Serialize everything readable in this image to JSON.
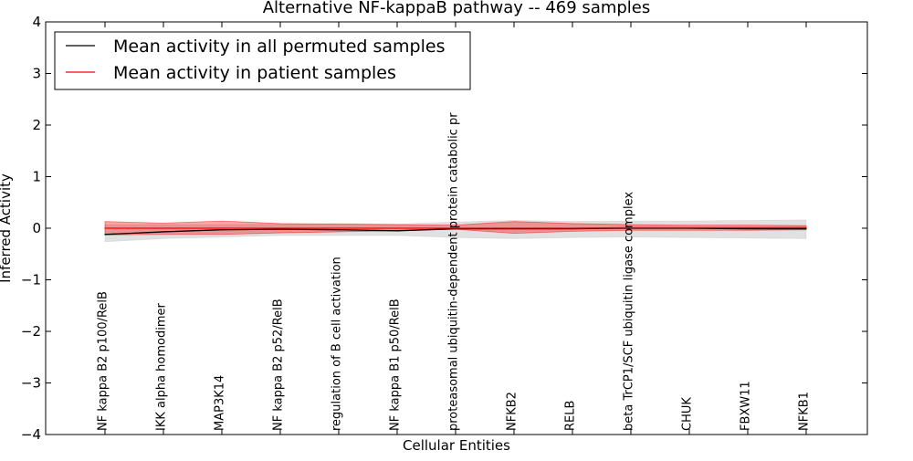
{
  "chart_data": {
    "type": "line",
    "title": "Alternative NF-kappaB pathway -- 469 samples",
    "xlabel": "Cellular Entities",
    "ylabel": "Inferred Activity",
    "ylim": [
      -4,
      4
    ],
    "yticks": [
      4,
      3,
      2,
      1,
      0,
      -1,
      -2,
      -3,
      -4
    ],
    "ytick_labels": [
      "4",
      "3",
      "2",
      "1",
      "0",
      "−1",
      "−2",
      "−3",
      "−4"
    ],
    "categories": [
      "NF kappa B2 p100/RelB",
      "IKK alpha homodimer",
      "MAP3K14",
      "NF kappa B2 p52/RelB",
      "regulation of B cell activation",
      "NF kappa B1 p50/RelB",
      "proteasomal ubiquitin-dependent protein catabolic pr",
      "NFKB2",
      "RELB",
      "beta TrCP1/SCF ubiquitin ligase complex",
      "CHUK",
      "FBXW11",
      "NFKB1"
    ],
    "series": [
      {
        "name": "Mean activity in all permuted samples",
        "color": "#000000",
        "band_color": "#c8c8c8",
        "values": [
          -0.12,
          -0.07,
          -0.03,
          -0.02,
          -0.03,
          -0.05,
          -0.01,
          -0.01,
          -0.01,
          0.0,
          0.0,
          -0.01,
          -0.01
        ],
        "lower": [
          -0.26,
          -0.2,
          -0.17,
          -0.14,
          -0.14,
          -0.14,
          -0.18,
          -0.2,
          -0.18,
          -0.17,
          -0.18,
          -0.19,
          -0.2
        ],
        "upper": [
          0.07,
          0.07,
          0.07,
          0.08,
          0.09,
          0.08,
          0.12,
          0.15,
          0.13,
          0.14,
          0.14,
          0.15,
          0.16
        ]
      },
      {
        "name": "Mean activity in patient samples",
        "color": "#ff0000",
        "band_color": "#ff0000",
        "values": [
          0.0,
          0.0,
          0.0,
          0.0,
          0.0,
          0.0,
          0.0,
          0.0,
          0.0,
          0.01,
          0.01,
          0.01,
          0.01
        ],
        "lower": [
          -0.13,
          -0.12,
          -0.12,
          -0.09,
          -0.07,
          -0.05,
          -0.02,
          -0.1,
          -0.06,
          -0.04,
          -0.04,
          -0.04,
          -0.03
        ],
        "upper": [
          0.13,
          0.1,
          0.14,
          0.09,
          0.08,
          0.07,
          0.06,
          0.13,
          0.09,
          0.07,
          0.06,
          0.06,
          0.05
        ]
      }
    ],
    "legend_position": "top-left",
    "grid": false
  }
}
